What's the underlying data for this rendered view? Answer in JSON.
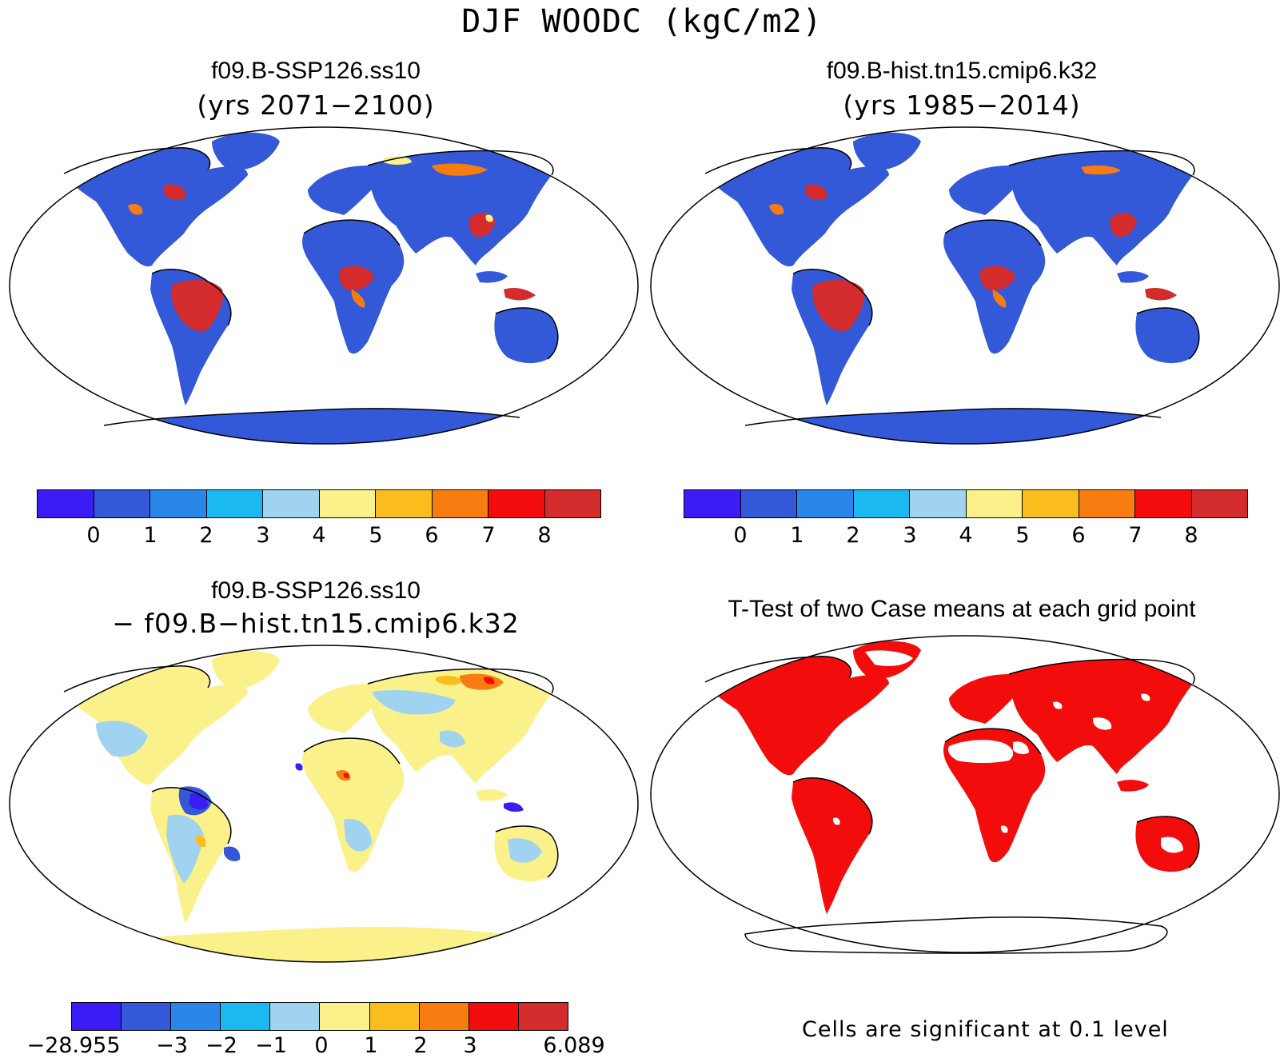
{
  "title": "DJF WOODC (kgC/m2)",
  "panels": {
    "top_left": {
      "title": "f09.B-SSP126.ss10",
      "subtitle": "(yrs 2071−2100)"
    },
    "top_right": {
      "title": "f09.B-hist.tn15.cmip6.k32",
      "subtitle": "(yrs 1985−2014)"
    },
    "bottom_left": {
      "title": "f09.B-SSP126.ss10",
      "subtitle": "− f09.B−hist.tn15.cmip6.k32"
    },
    "bottom_right": {
      "title": "T-Test of two Case means at each grid point",
      "note": "Cells are significant at 0.1 level"
    }
  },
  "colorbar_abs": {
    "colors": [
      "#3a1df5",
      "#3358d8",
      "#2b86ea",
      "#1ab9ef",
      "#9fd3ef",
      "#fbf18a",
      "#fbbd1d",
      "#f77d11",
      "#f30c0c",
      "#d42c2c"
    ],
    "ticks": [
      "0",
      "1",
      "2",
      "3",
      "4",
      "5",
      "6",
      "7",
      "8"
    ]
  },
  "colorbar_diff": {
    "colors": [
      "#3a1df5",
      "#3358d8",
      "#2b86ea",
      "#1ab9ef",
      "#9fd3ef",
      "#fbf18a",
      "#fbbd1d",
      "#f77d11",
      "#f30c0c",
      "#d42c2c"
    ],
    "ticks": [
      "−28.955",
      "−3",
      "−2",
      "−1",
      "0",
      "1",
      "2",
      "3",
      "",
      "6.089"
    ]
  },
  "map_colors": {
    "land_low": "#3358d8",
    "tropical_high": "#d42c2c",
    "mid": "#f77d11",
    "diff_base": "#fbf18a",
    "diff_neg": "#9fd3ef",
    "diff_strong_neg": "#3a1df5",
    "ttest_sig": "#f30c0c"
  }
}
